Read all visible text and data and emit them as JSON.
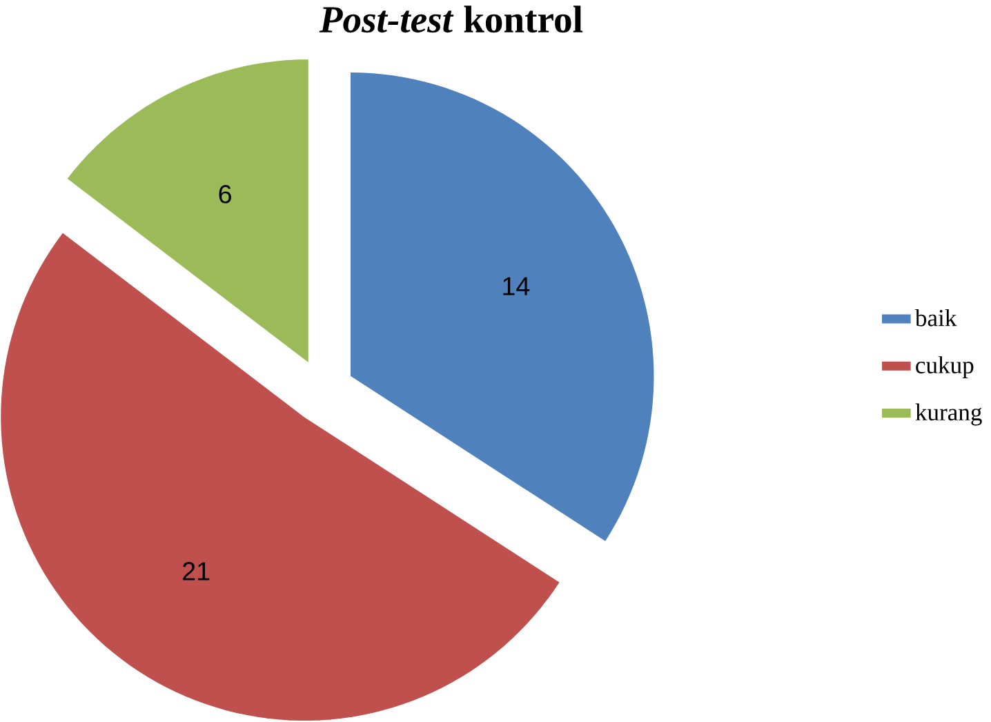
{
  "chart_data": {
    "type": "pie",
    "title": "*Post-test* kontrol",
    "categories": [
      "baik",
      "cukup",
      "kurang"
    ],
    "values": [
      14,
      21,
      6
    ],
    "colors": [
      "#4f81bd",
      "#c0504d",
      "#9bbb59"
    ],
    "data_labels": true,
    "legend": "right"
  }
}
